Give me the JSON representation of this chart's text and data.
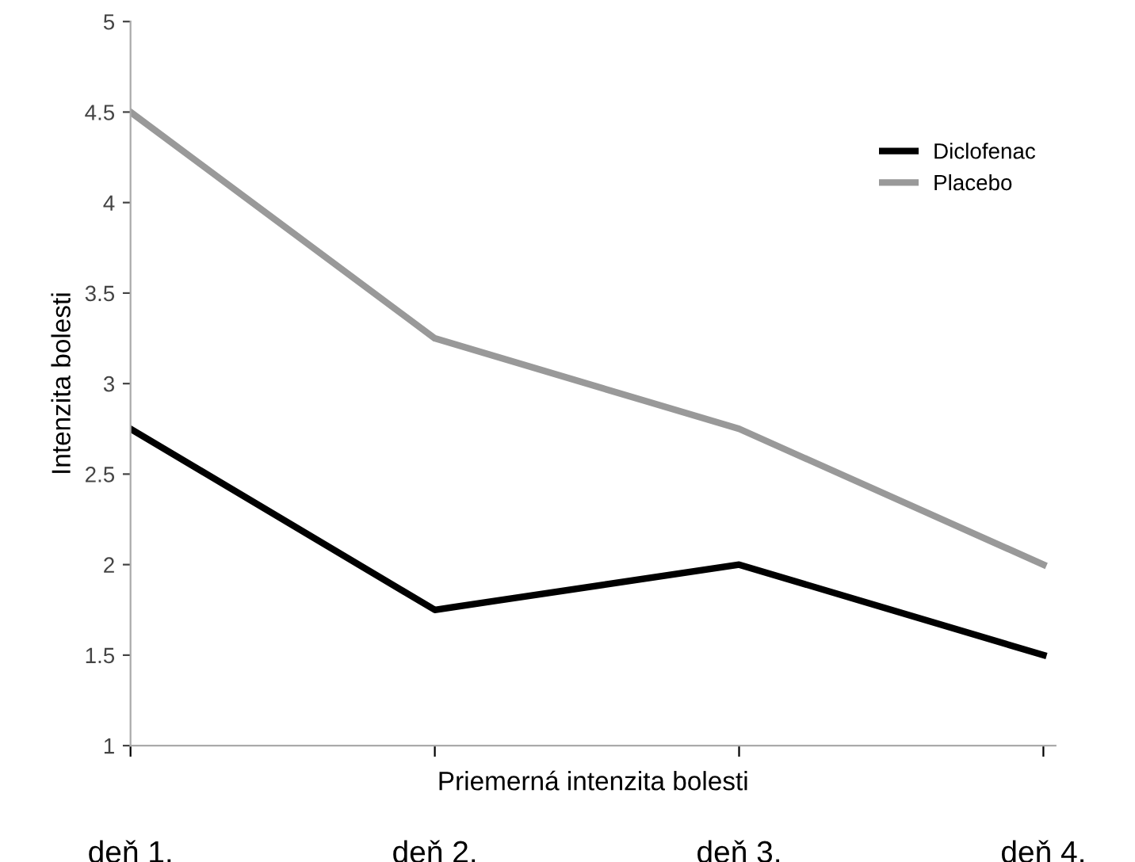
{
  "chart_data": {
    "type": "line",
    "xlabel": "Priemerná intenzita bolesti",
    "ylabel": "Intenzita bolesti",
    "categories": [
      "deň 1.",
      "deň 2.",
      "deň 3.",
      "deň 4."
    ],
    "series": [
      {
        "name": "Diclofenac",
        "color": "#000000",
        "values": [
          2.75,
          1.75,
          2.0,
          1.5
        ]
      },
      {
        "name": "Placebo",
        "color": "#999999",
        "values": [
          4.5,
          3.25,
          2.75,
          2.0
        ]
      }
    ],
    "ylim": [
      1,
      5
    ],
    "yticks": [
      1,
      1.5,
      2,
      2.5,
      3,
      3.5,
      4,
      4.5,
      5
    ],
    "grid": false,
    "legend": "top right",
    "marker": "none",
    "line_style": "solid"
  }
}
